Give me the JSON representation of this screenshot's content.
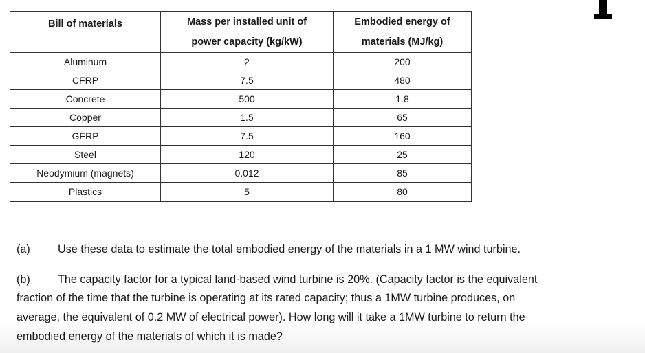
{
  "table": {
    "headers": [
      "Bill of materials",
      "Mass  per installed unit of power capacity (kg/kW)",
      "Embodied energy of materials (MJ/kg)"
    ],
    "header_lines": {
      "col1": [
        "Mass  per installed unit of",
        "power capacity (kg/kW)"
      ],
      "col2": [
        "Embodied energy of",
        "materials (MJ/kg)"
      ]
    },
    "rows": [
      {
        "material": "Aluminum",
        "mass": "2",
        "energy": "200"
      },
      {
        "material": "CFRP",
        "mass": "7.5",
        "energy": "480"
      },
      {
        "material": "Concrete",
        "mass": "500",
        "energy": "1.8"
      },
      {
        "material": "Copper",
        "mass": "1.5",
        "energy": "65"
      },
      {
        "material": "GFRP",
        "mass": "7.5",
        "energy": "160"
      },
      {
        "material": "Steel",
        "mass": "120",
        "energy": "25"
      },
      {
        "material": "Neodymium (magnets)",
        "mass": "0.012",
        "energy": "85"
      },
      {
        "material": "Plastics",
        "mass": "5",
        "energy": "80"
      }
    ]
  },
  "questions": {
    "a": {
      "label": "(a)",
      "text": "Use these data to estimate the total embodied energy of the materials in a 1 MW wind turbine."
    },
    "b": {
      "label": "(b)",
      "lines": [
        "The capacity factor for a typical land-based wind turbine is 20%. (Capacity factor is the equivalent",
        "fraction of the time that the turbine is operating at its rated capacity; thus a 1MW turbine produces, on",
        "average, the equivalent of 0.2 MW of electrical power).  How long will it take a 1MW turbine to return the",
        "embodied energy of the materials of which it is made?"
      ]
    }
  }
}
